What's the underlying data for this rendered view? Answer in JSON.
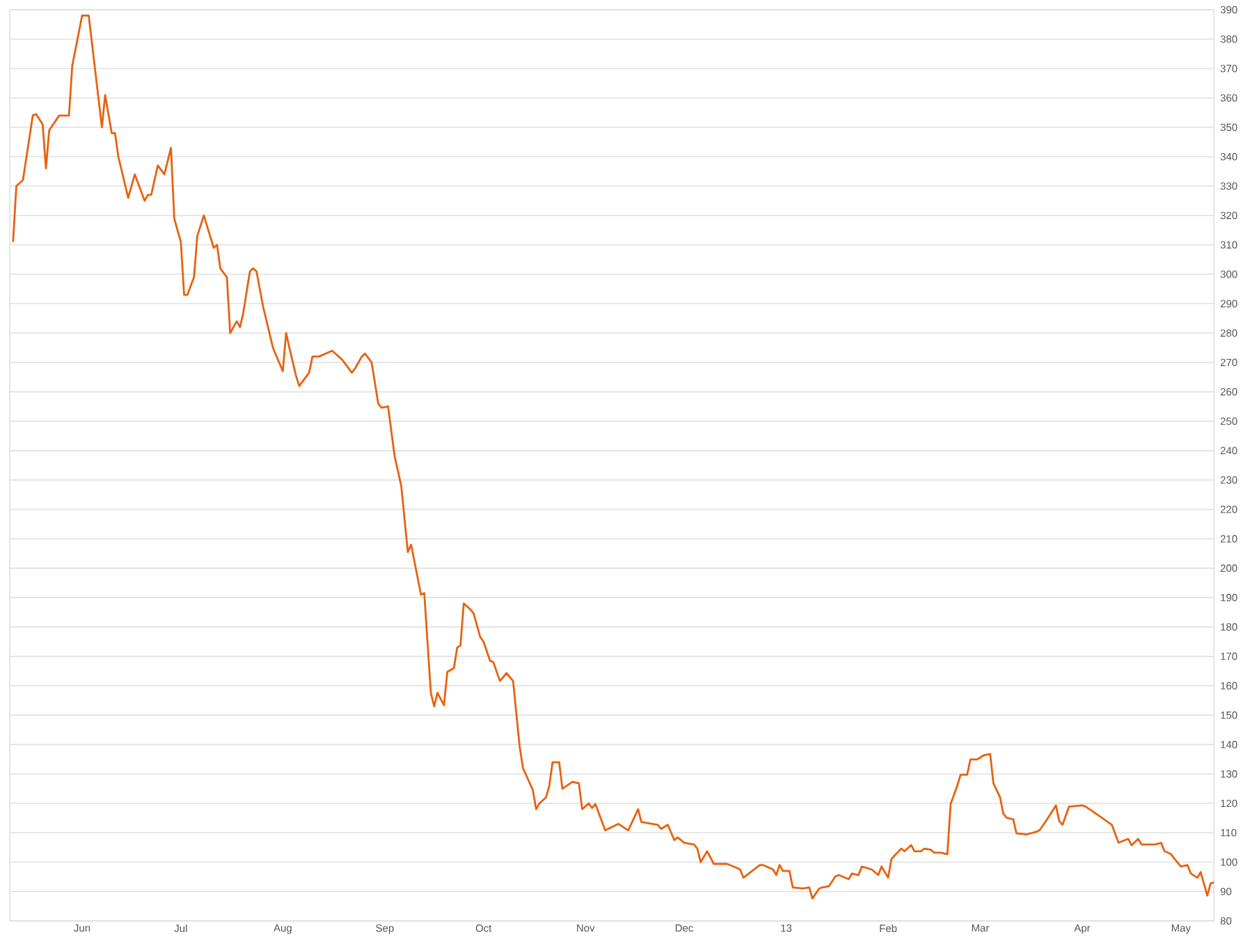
{
  "chart_data": {
    "type": "line",
    "x": [
      "2012-05-11",
      "2012-05-12",
      "2012-05-14",
      "2012-05-17",
      "2012-05-18",
      "2012-05-20",
      "2012-05-21",
      "2012-05-22",
      "2012-05-25",
      "2012-05-28",
      "2012-05-29",
      "2012-06-01",
      "2012-06-03",
      "2012-06-07",
      "2012-06-08",
      "2012-06-10",
      "2012-06-11",
      "2012-06-12",
      "2012-06-15",
      "2012-06-17",
      "2012-06-20",
      "2012-06-21",
      "2012-06-22",
      "2012-06-24",
      "2012-06-26",
      "2012-06-28",
      "2012-06-29",
      "2012-07-01",
      "2012-07-02",
      "2012-07-03",
      "2012-07-05",
      "2012-07-06",
      "2012-07-08",
      "2012-07-11",
      "2012-07-12",
      "2012-07-13",
      "2012-07-15",
      "2012-07-16",
      "2012-07-18",
      "2012-07-19",
      "2012-07-20",
      "2012-07-22",
      "2012-07-23",
      "2012-07-24",
      "2012-07-26",
      "2012-07-29",
      "2012-08-01",
      "2012-08-02",
      "2012-08-03",
      "2012-08-05",
      "2012-08-06",
      "2012-08-08",
      "2012-08-09",
      "2012-08-10",
      "2012-08-12",
      "2012-08-16",
      "2012-08-19",
      "2012-08-22",
      "2012-08-23",
      "2012-08-25",
      "2012-08-26",
      "2012-08-28",
      "2012-08-30",
      "2012-08-31",
      "2012-09-02",
      "2012-09-04",
      "2012-09-06",
      "2012-09-08",
      "2012-09-09",
      "2012-09-12",
      "2012-09-13",
      "2012-09-15",
      "2012-09-16",
      "2012-09-17",
      "2012-09-19",
      "2012-09-20",
      "2012-09-22",
      "2012-09-23",
      "2012-09-24",
      "2012-09-25",
      "2012-09-27",
      "2012-09-28",
      "2012-09-30",
      "2012-10-01",
      "2012-10-03",
      "2012-10-04",
      "2012-10-06",
      "2012-10-08",
      "2012-10-10",
      "2012-10-12",
      "2012-10-13",
      "2012-10-16",
      "2012-10-17",
      "2012-10-18",
      "2012-10-20",
      "2012-10-21",
      "2012-10-22",
      "2012-10-24",
      "2012-10-25",
      "2012-10-28",
      "2012-10-30",
      "2012-10-31",
      "2012-11-02",
      "2012-11-03",
      "2012-11-04",
      "2012-11-07",
      "2012-11-11",
      "2012-11-14",
      "2012-11-17",
      "2012-11-18",
      "2012-11-23",
      "2012-11-24",
      "2012-11-26",
      "2012-11-28",
      "2012-11-29",
      "2012-12-01",
      "2012-12-04",
      "2012-12-05",
      "2012-12-06",
      "2012-12-08",
      "2012-12-10",
      "2012-12-14",
      "2012-12-16",
      "2012-12-18",
      "2012-12-19",
      "2012-12-24",
      "2012-12-25",
      "2012-12-28",
      "2012-12-29",
      "2012-12-30",
      "2012-12-31",
      "2013-01-02",
      "2013-01-03",
      "2013-01-06",
      "2013-01-08",
      "2013-01-09",
      "2013-01-11",
      "2013-01-12",
      "2013-01-14",
      "2013-01-16",
      "2013-01-17",
      "2013-01-20",
      "2013-01-21",
      "2013-01-23",
      "2013-01-24",
      "2013-01-27",
      "2013-01-29",
      "2013-01-30",
      "2013-02-01",
      "2013-02-02",
      "2013-02-03",
      "2013-02-05",
      "2013-02-06",
      "2013-02-08",
      "2013-02-09",
      "2013-02-11",
      "2013-02-12",
      "2013-02-14",
      "2013-02-15",
      "2013-02-17",
      "2013-02-19",
      "2013-02-20",
      "2013-02-22",
      "2013-02-23",
      "2013-02-25",
      "2013-02-26",
      "2013-02-28",
      "2013-03-02",
      "2013-03-04",
      "2013-03-05",
      "2013-03-07",
      "2013-03-08",
      "2013-03-09",
      "2013-03-11",
      "2013-03-12",
      "2013-03-15",
      "2013-03-18",
      "2013-03-19",
      "2013-03-21",
      "2013-03-24",
      "2013-03-25",
      "2013-03-26",
      "2013-03-28",
      "2013-04-01",
      "2013-04-02",
      "2013-04-04",
      "2013-04-10",
      "2013-04-12",
      "2013-04-15",
      "2013-04-16",
      "2013-04-18",
      "2013-04-19",
      "2013-04-23",
      "2013-04-25",
      "2013-04-26",
      "2013-04-28",
      "2013-04-29",
      "2013-05-01",
      "2013-05-03",
      "2013-05-04",
      "2013-05-06",
      "2013-05-07",
      "2013-05-09",
      "2013-05-10",
      "2013-05-11"
    ],
    "values": [
      311,
      330,
      332,
      354,
      354.5,
      351,
      336,
      349,
      354,
      354,
      371,
      388,
      388,
      350,
      361,
      348,
      348,
      340,
      326,
      334,
      325,
      327,
      327,
      337,
      334,
      343,
      319,
      311,
      293,
      293,
      299,
      313,
      320,
      309,
      310,
      302,
      299,
      280,
      284,
      282,
      287,
      301,
      302,
      301,
      289,
      275,
      267,
      280,
      275,
      265.5,
      262,
      265,
      266.5,
      272,
      272,
      274,
      271,
      266.5,
      268,
      272,
      273,
      270,
      256,
      254.6,
      255,
      238,
      228,
      205.5,
      208,
      191,
      191.5,
      157.6,
      153,
      157.6,
      153.4,
      164.7,
      166,
      173,
      173.7,
      188,
      186,
      184.6,
      176.6,
      175,
      168.5,
      168,
      161.6,
      164.3,
      161.6,
      139.2,
      132,
      124.5,
      118,
      120,
      122,
      126,
      134,
      134,
      125,
      127.3,
      126.8,
      118,
      120,
      118.4,
      119.8,
      110.8,
      113,
      110.8,
      118,
      113.6,
      112.7,
      111.3,
      112.7,
      107.5,
      108.4,
      106.6,
      106,
      104.6,
      100,
      103.7,
      99.4,
      99.4,
      98.5,
      97.5,
      94.7,
      99,
      99,
      97.5,
      95.6,
      99,
      97,
      97,
      91.4,
      91,
      91.4,
      87.6,
      91,
      91.4,
      91.8,
      95.2,
      95.6,
      94.2,
      96.1,
      95.6,
      98.5,
      97.5,
      95.6,
      98.5,
      94.7,
      101,
      102.3,
      104.6,
      103.7,
      105.8,
      103.7,
      103.7,
      104.6,
      104.2,
      103.2,
      103.2,
      102.7,
      119.8,
      125.9,
      129.7,
      129.7,
      134.9,
      134.9,
      136.3,
      136.8,
      126.8,
      122.1,
      116.5,
      115.1,
      114.6,
      109.8,
      109.4,
      110.3,
      110.8,
      114,
      119.3,
      114,
      112.7,
      118.9,
      119.3,
      118.9,
      117.4,
      112.7,
      106.6,
      107.9,
      105.7,
      107.9,
      106,
      106,
      106.5,
      103.7,
      102.7,
      101.2,
      98.5,
      99,
      96.1,
      94.7,
      96.6,
      88.6,
      92.7,
      93.1
    ],
    "color": "#e8620f",
    "xlim": [
      "2012-05-10",
      "2013-05-11"
    ],
    "xticks": [
      {
        "value": "2012-06-01",
        "label": "Jun"
      },
      {
        "value": "2012-07-01",
        "label": "Jul"
      },
      {
        "value": "2012-08-01",
        "label": "Aug"
      },
      {
        "value": "2012-09-01",
        "label": "Sep"
      },
      {
        "value": "2012-10-01",
        "label": "Oct"
      },
      {
        "value": "2012-11-01",
        "label": "Nov"
      },
      {
        "value": "2012-12-01",
        "label": "Dec"
      },
      {
        "value": "2013-01-01",
        "label": "13"
      },
      {
        "value": "2013-02-01",
        "label": "Feb"
      },
      {
        "value": "2013-03-01",
        "label": "Mar"
      },
      {
        "value": "2013-04-01",
        "label": "Apr"
      },
      {
        "value": "2013-05-01",
        "label": "May"
      }
    ],
    "ylim": [
      80,
      390
    ],
    "yticks": [
      80,
      90,
      100,
      110,
      120,
      130,
      140,
      150,
      160,
      170,
      180,
      190,
      200,
      210,
      220,
      230,
      240,
      250,
      260,
      270,
      280,
      290,
      300,
      310,
      320,
      330,
      340,
      350,
      360,
      370,
      380,
      390
    ],
    "grid": "y"
  }
}
